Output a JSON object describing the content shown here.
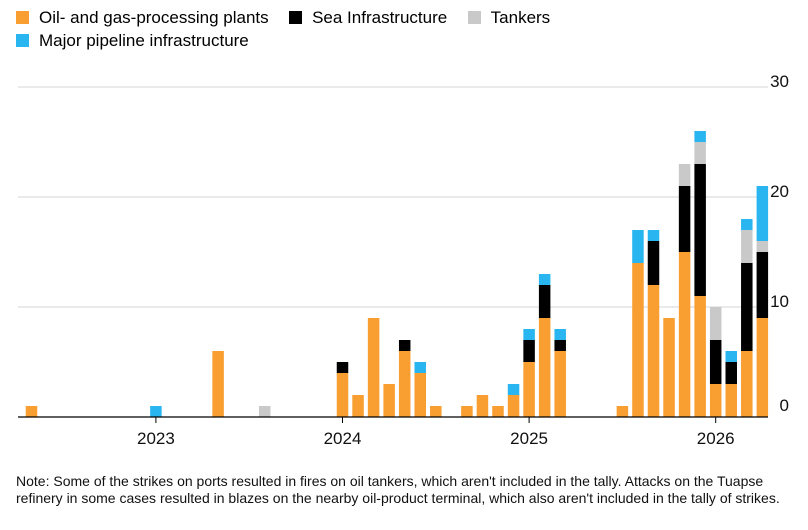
{
  "chart_data": {
    "type": "bar",
    "stacked": true,
    "series": [
      {
        "name": "Oil- and gas-processing plants",
        "color": "#f99e30",
        "values": [
          1,
          0,
          0,
          0,
          0,
          0,
          0,
          0,
          0,
          0,
          0,
          0,
          6,
          0,
          0,
          0,
          0,
          0,
          0,
          0,
          4,
          2,
          9,
          3,
          6,
          4,
          1,
          0,
          1,
          2,
          1,
          2,
          5,
          9,
          6,
          0,
          0,
          0,
          1,
          14,
          12,
          9,
          15,
          11,
          3,
          3,
          6,
          9
        ]
      },
      {
        "name": "Sea Infrastructure",
        "color": "#000000",
        "values": [
          0,
          0,
          0,
          0,
          0,
          0,
          0,
          0,
          0,
          0,
          0,
          0,
          0,
          0,
          0,
          0,
          0,
          0,
          0,
          0,
          1,
          0,
          0,
          0,
          1,
          0,
          0,
          0,
          0,
          0,
          0,
          0,
          2,
          3,
          1,
          0,
          0,
          0,
          0,
          0,
          4,
          0,
          6,
          12,
          4,
          2,
          8,
          6
        ]
      },
      {
        "name": "Tankers",
        "color": "#c9c9c9",
        "values": [
          0,
          0,
          0,
          0,
          0,
          0,
          0,
          0,
          0,
          0,
          0,
          0,
          0,
          0,
          0,
          1,
          0,
          0,
          0,
          0,
          0,
          0,
          0,
          0,
          0,
          0,
          0,
          0,
          0,
          0,
          0,
          0,
          0,
          0,
          0,
          0,
          0,
          0,
          0,
          0,
          0,
          0,
          2,
          2,
          3,
          0,
          3,
          1
        ]
      },
      {
        "name": "Major pipeline infrastructure",
        "color": "#29b6f0",
        "values": [
          0,
          0,
          0,
          0,
          0,
          0,
          0,
          0,
          1,
          0,
          0,
          0,
          0,
          0,
          0,
          0,
          0,
          0,
          0,
          0,
          0,
          0,
          0,
          0,
          0,
          1,
          0,
          0,
          0,
          0,
          0,
          1,
          1,
          1,
          1,
          0,
          0,
          0,
          0,
          3,
          1,
          0,
          0,
          1,
          0,
          1,
          1,
          5
        ]
      }
    ],
    "x_labels": [
      "2023",
      "2024",
      "2025",
      "2026"
    ],
    "x_label_months": [
      8,
      20,
      32,
      44
    ],
    "months": 48,
    "ylim": [
      0,
      30
    ],
    "yticks": [
      0,
      10,
      20,
      30
    ],
    "grid": true,
    "y_axis_side": "right",
    "legend_position": "top-left"
  },
  "note": "Note: Some of the strikes on ports resulted in fires on oil tankers, which aren't included in the tally. Attacks on the Tuapse refinery in some cases resulted in blazes on the nearby oil-product terminal, which also aren't included in the tally of strikes."
}
